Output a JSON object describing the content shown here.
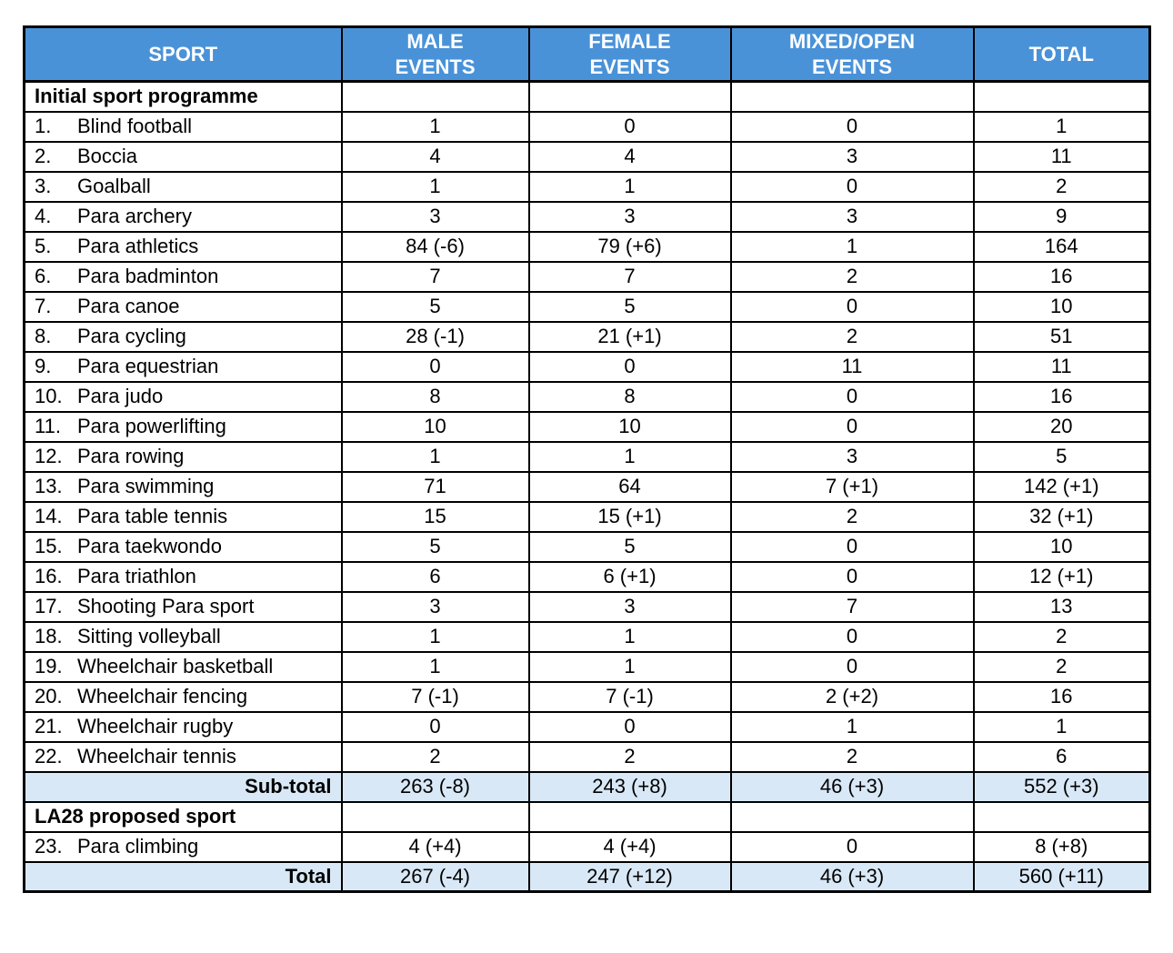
{
  "colors": {
    "header_bg": "#4a92d8",
    "header_text": "#ffffff",
    "summary_bg": "#d9e8f6",
    "border": "#000000"
  },
  "header": {
    "columns": [
      {
        "label": "SPORT"
      },
      {
        "label": "MALE\nEVENTS"
      },
      {
        "label": "FEMALE\nEVENTS"
      },
      {
        "label": "MIXED/OPEN\nEVENTS"
      },
      {
        "label": "TOTAL"
      }
    ]
  },
  "sections": [
    {
      "title": "Initial sport programme",
      "rows": [
        {
          "num": "1.",
          "sport": "Blind football",
          "values": [
            "1",
            "0",
            "0",
            "1"
          ]
        },
        {
          "num": "2.",
          "sport": "Boccia",
          "values": [
            "4",
            "4",
            "3",
            "11"
          ]
        },
        {
          "num": "3.",
          "sport": "Goalball",
          "values": [
            "1",
            "1",
            "0",
            "2"
          ]
        },
        {
          "num": "4.",
          "sport": "Para archery",
          "values": [
            "3",
            "3",
            "3",
            "9"
          ]
        },
        {
          "num": "5.",
          "sport": "Para athletics",
          "values": [
            "84 (-6)",
            "79 (+6)",
            "1",
            "164"
          ]
        },
        {
          "num": "6.",
          "sport": "Para badminton",
          "values": [
            "7",
            "7",
            "2",
            "16"
          ]
        },
        {
          "num": "7.",
          "sport": "Para canoe",
          "values": [
            "5",
            "5",
            "0",
            "10"
          ]
        },
        {
          "num": "8.",
          "sport": "Para cycling",
          "values": [
            "28 (-1)",
            "21 (+1)",
            "2",
            "51"
          ]
        },
        {
          "num": "9.",
          "sport": "Para equestrian",
          "values": [
            "0",
            "0",
            "11",
            "11"
          ]
        },
        {
          "num": "10.",
          "sport": "Para judo",
          "values": [
            "8",
            "8",
            "0",
            "16"
          ]
        },
        {
          "num": "11.",
          "sport": "Para powerlifting",
          "values": [
            "10",
            "10",
            "0",
            "20"
          ]
        },
        {
          "num": "12.",
          "sport": "Para rowing",
          "values": [
            "1",
            "1",
            "3",
            "5"
          ]
        },
        {
          "num": "13.",
          "sport": "Para swimming",
          "values": [
            "71",
            "64",
            "7 (+1)",
            "142 (+1)"
          ]
        },
        {
          "num": "14.",
          "sport": "Para table tennis",
          "values": [
            "15",
            "15 (+1)",
            "2",
            "32 (+1)"
          ]
        },
        {
          "num": "15.",
          "sport": "Para taekwondo",
          "values": [
            "5",
            "5",
            "0",
            "10"
          ]
        },
        {
          "num": "16.",
          "sport": "Para triathlon",
          "values": [
            "6",
            "6 (+1)",
            "0",
            "12 (+1)"
          ]
        },
        {
          "num": "17.",
          "sport": "Shooting Para sport",
          "values": [
            "3",
            "3",
            "7",
            "13"
          ]
        },
        {
          "num": "18.",
          "sport": "Sitting volleyball",
          "values": [
            "1",
            "1",
            "0",
            "2"
          ]
        },
        {
          "num": "19.",
          "sport": "Wheelchair basketball",
          "values": [
            "1",
            "1",
            "0",
            "2"
          ]
        },
        {
          "num": "20.",
          "sport": "Wheelchair fencing",
          "values": [
            "7 (-1)",
            "7 (-1)",
            "2 (+2)",
            "16"
          ]
        },
        {
          "num": "21.",
          "sport": "Wheelchair rugby",
          "values": [
            "0",
            "0",
            "1",
            "1"
          ]
        },
        {
          "num": "22.",
          "sport": "Wheelchair tennis",
          "values": [
            "2",
            "2",
            "2",
            "6"
          ]
        }
      ],
      "summary": {
        "label": "Sub-total",
        "values": [
          "263 (-8)",
          "243 (+8)",
          "46 (+3)",
          "552 (+3)"
        ]
      }
    },
    {
      "title": "LA28 proposed sport",
      "rows": [
        {
          "num": "23.",
          "sport": "Para climbing",
          "values": [
            "4 (+4)",
            "4 (+4)",
            "0",
            "8 (+8)"
          ]
        }
      ],
      "summary": {
        "label": "Total",
        "values": [
          "267 (-4)",
          "247 (+12)",
          "46 (+3)",
          "560 (+11)"
        ]
      }
    }
  ]
}
